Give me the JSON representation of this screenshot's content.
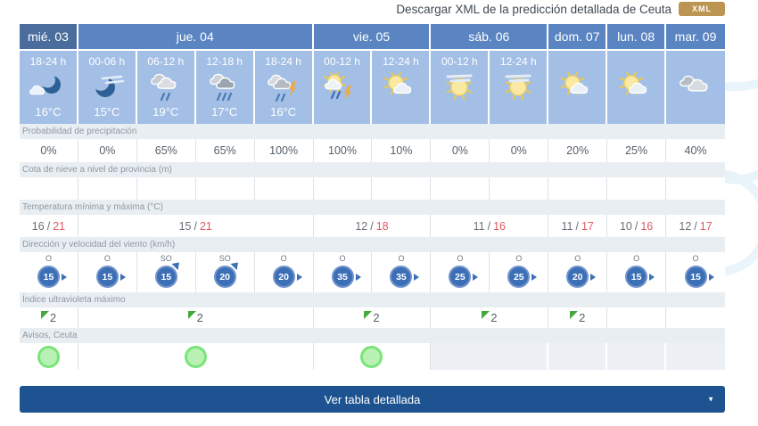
{
  "header": {
    "download_label": "Descargar XML de la predicción detallada de Ceuta",
    "xml_badge": "XML"
  },
  "colors": {
    "day_header_first_bg": "#4a6d9d",
    "day_header_bg": "#5a85c2",
    "forecast_cell_bg": "#a3bfe5",
    "label_strip_bg": "#e9eef3",
    "label_text": "#8f98a1",
    "value_text": "#55606a",
    "temp_max": "#e25862",
    "wind_circle": "#3c6fb6",
    "uv_green": "#44a93c",
    "warning_green_fill": "#b9f0b4",
    "warning_green_ring": "#7be47a",
    "button_bg": "#1d5391",
    "xml_badge_bg": "#bd9552"
  },
  "table": {
    "days": [
      {
        "label": "mié. 03",
        "span": 1
      },
      {
        "label": "jue. 04",
        "span": 4
      },
      {
        "label": "vie. 05",
        "span": 2
      },
      {
        "label": "sáb. 06",
        "span": 2
      },
      {
        "label": "dom. 07",
        "span": 1
      },
      {
        "label": "lun. 08",
        "span": 1
      },
      {
        "label": "mar. 09",
        "span": 1
      }
    ],
    "columns": [
      {
        "period": "18-24 h",
        "icon": "moon-cloud",
        "temp": "16°C",
        "precipitation": "0%",
        "snow": "",
        "wind_dir": "O",
        "wind_speed": "15"
      },
      {
        "period": "00-06 h",
        "icon": "moon-cirrus",
        "temp": "15°C",
        "precipitation": "0%",
        "snow": "",
        "wind_dir": "O",
        "wind_speed": "15"
      },
      {
        "period": "06-12 h",
        "icon": "rain",
        "temp": "19°C",
        "precipitation": "65%",
        "snow": "",
        "wind_dir": "SO",
        "wind_speed": "15"
      },
      {
        "period": "12-18 h",
        "icon": "rain-dark",
        "temp": "17°C",
        "precipitation": "65%",
        "snow": "",
        "wind_dir": "SO",
        "wind_speed": "20"
      },
      {
        "period": "18-24 h",
        "icon": "storm-rain",
        "temp": "16°C",
        "precipitation": "100%",
        "snow": "",
        "wind_dir": "O",
        "wind_speed": "20"
      },
      {
        "period": "00-12 h",
        "icon": "sun-storm",
        "temp": "",
        "precipitation": "100%",
        "snow": "",
        "wind_dir": "O",
        "wind_speed": "35"
      },
      {
        "period": "12-24 h",
        "icon": "sun-cloud",
        "temp": "",
        "precipitation": "10%",
        "snow": "",
        "wind_dir": "O",
        "wind_speed": "35"
      },
      {
        "period": "00-12 h",
        "icon": "sun-cirrus",
        "temp": "",
        "precipitation": "0%",
        "snow": "",
        "wind_dir": "O",
        "wind_speed": "25"
      },
      {
        "period": "12-24 h",
        "icon": "sun-cirrus",
        "temp": "",
        "precipitation": "0%",
        "snow": "",
        "wind_dir": "O",
        "wind_speed": "25"
      },
      {
        "period": "",
        "icon": "sun-cloud",
        "temp": "",
        "precipitation": "20%",
        "snow": "",
        "wind_dir": "O",
        "wind_speed": "20"
      },
      {
        "period": "",
        "icon": "sun-cloud",
        "temp": "",
        "precipitation": "25%",
        "snow": "",
        "wind_dir": "O",
        "wind_speed": "15"
      },
      {
        "period": "",
        "icon": "clouds",
        "temp": "",
        "precipitation": "40%",
        "snow": "",
        "wind_dir": "O",
        "wind_speed": "15"
      }
    ],
    "row_labels": {
      "precipitation": "Probabilidad de precipitación",
      "snow": "Cota de nieve a nivel de provincia (m)",
      "temperature": "Temperatura mínima y máxima (°C)",
      "wind": "Dirección y velocidad del viento (km/h)",
      "uv": "Índice ultravioleta máximo",
      "warnings": "Avisos, Ceuta"
    },
    "temperature_cells": [
      {
        "min": "16",
        "max": "21",
        "span": 1
      },
      {
        "min": "15",
        "max": "21",
        "span": 4
      },
      {
        "min": "12",
        "max": "18",
        "span": 2
      },
      {
        "min": "11",
        "max": "16",
        "span": 2
      },
      {
        "min": "11",
        "max": "17",
        "span": 1
      },
      {
        "min": "10",
        "max": "16",
        "span": 1
      },
      {
        "min": "12",
        "max": "17",
        "span": 1
      }
    ],
    "uv_cells": [
      {
        "value": "2",
        "span": 1
      },
      {
        "value": "2",
        "span": 4
      },
      {
        "value": "2",
        "span": 2
      },
      {
        "value": "2",
        "span": 2
      },
      {
        "value": "2",
        "span": 1
      },
      {
        "value": "",
        "span": 1
      },
      {
        "value": "",
        "span": 1
      }
    ],
    "warning_cells": [
      {
        "warning": true,
        "span": 1
      },
      {
        "warning": true,
        "span": 4
      },
      {
        "warning": true,
        "span": 2
      },
      {
        "warning": false,
        "span": 2
      },
      {
        "warning": false,
        "span": 1
      },
      {
        "warning": false,
        "span": 1
      },
      {
        "warning": false,
        "span": 1
      }
    ]
  },
  "footer": {
    "button_label": "Ver tabla detallada"
  }
}
